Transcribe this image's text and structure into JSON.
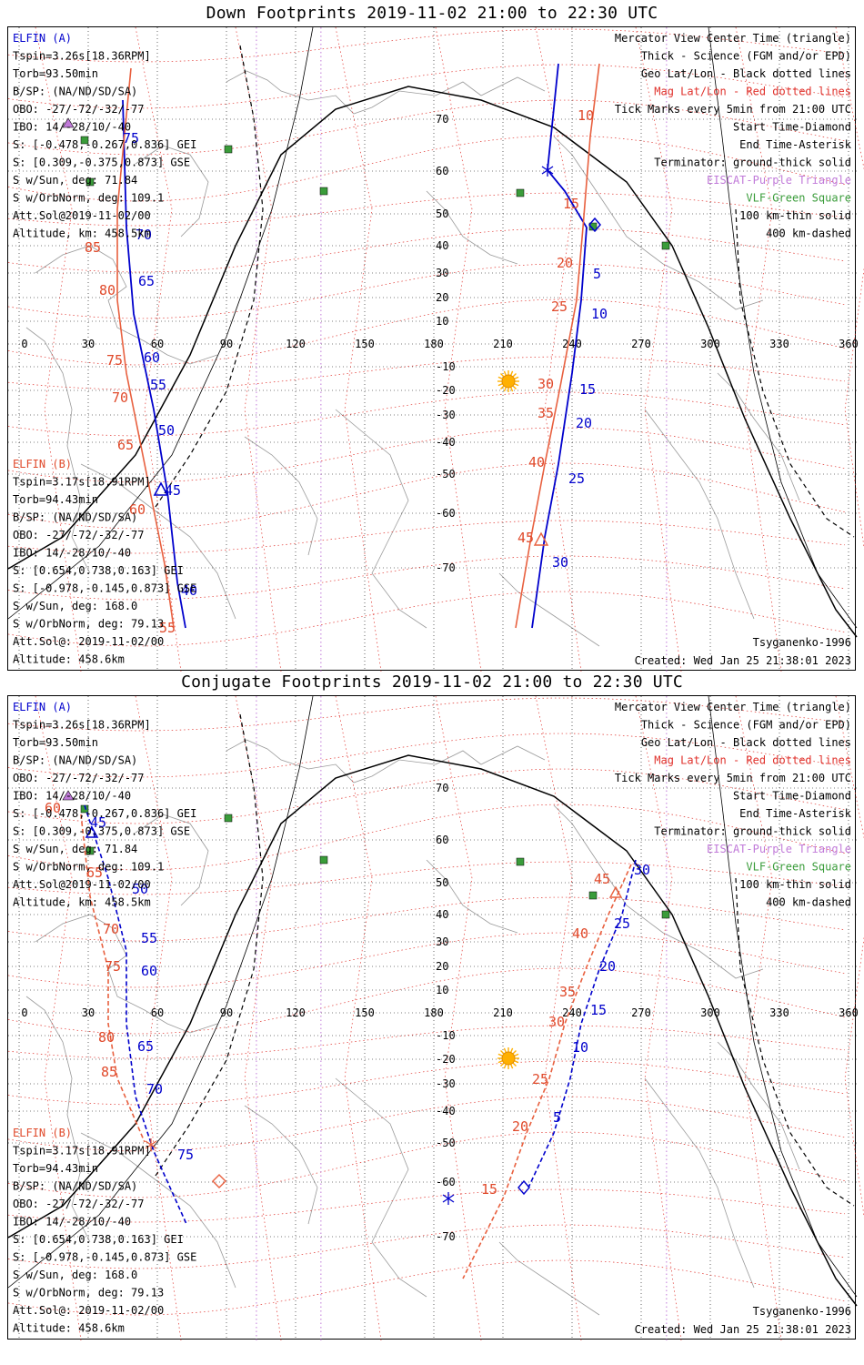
{
  "panels": [
    {
      "id": "down",
      "title": "Down Footprints 2019-11-02 21:00 to 22:30 UTC",
      "elfin_a": {
        "name": "ELFIN (A)",
        "lines": [
          "Tspin=3.26s[18.36RPM]",
          "Torb=93.50min",
          "B/SP: (NA/ND/SD/SA)",
          "OBO: -27/-72/-32/-77",
          "IBO: 14/-28/10/-40",
          "S: [-0.478,-0.267,0.836] GEI",
          "S: [0.309,-0.375,0.873] GSE",
          "S w/Sun, deg: 71.84",
          "S w/OrbNorm, deg: 109.1",
          "Att.Sol@2019-11-02/00",
          "Altitude, km: 458.5km"
        ]
      },
      "elfin_b": {
        "name": "ELFIN (B)",
        "lines": [
          "Tspin=3.17s[18.91RPM]",
          "Torb=94.43min",
          "B/SP: (NA/ND/SD/SA)",
          "OBO: -27/-72/-32/-77",
          "IBO: 14/-28/10/-40",
          "S: [0.654,0.738,0.163] GEI",
          "S: [-0.978,-0.145,0.873] GSE",
          "S w/Sun, deg: 168.0",
          "S w/OrbNorm, deg: 79.13",
          "Att.Sol@: 2019-11-02/00",
          "Altitude: 458.6km"
        ]
      },
      "legend": [
        {
          "text": "Mercator View Center Time (triangle)",
          "color": "#000000"
        },
        {
          "text": "Thick - Science (FGM and/or EPD)",
          "color": "#000000"
        },
        {
          "text": "Geo Lat/Lon - Black dotted lines",
          "color": "#000000"
        },
        {
          "text": "Mag Lat/Lon - Red dotted lines",
          "color": "#e0312b"
        },
        {
          "text": "Tick Marks every 5min from 21:00 UTC",
          "color": "#000000"
        },
        {
          "text": "Start Time-Diamond",
          "color": "#000000"
        },
        {
          "text": "End Time-Asterisk",
          "color": "#000000"
        },
        {
          "text": "Terminator: ground-thick solid",
          "color": "#000000"
        },
        {
          "text": "EISCAT-Purple Triangle",
          "color": "#c17ad9"
        },
        {
          "text": "VLF-Green Square",
          "color": "#3a9c3a"
        },
        {
          "text": "100 km-thin solid",
          "color": "#000000"
        },
        {
          "text": "400 km-dashed",
          "color": "#000000"
        }
      ],
      "model": "Tsyganenko-1996",
      "created": "Created: Wed Jan 25 21:38:01 2023",
      "lon_ticks": [
        "0",
        "30",
        "60",
        "90",
        "120",
        "150",
        "180",
        "210",
        "240",
        "270",
        "300",
        "330",
        "360"
      ],
      "lat_ticks": [
        "70",
        "60",
        "50",
        "40",
        "30",
        "20",
        "10",
        "-10",
        "-20",
        "-30",
        "-40",
        "-50",
        "-60",
        "-70"
      ],
      "track_a_labels": [
        "75",
        "70",
        "65",
        "60",
        "55",
        "50",
        "45",
        "40",
        "5",
        "10",
        "15",
        "20",
        "25",
        "30"
      ],
      "track_b_labels": [
        "85",
        "80",
        "75",
        "70",
        "65",
        "60",
        "55",
        "10",
        "15",
        "20",
        "25",
        "30",
        "35",
        "40",
        "45"
      ]
    },
    {
      "id": "conj",
      "title": "Conjugate Footprints 2019-11-02 21:00 to 22:30 UTC",
      "elfin_a": {
        "name": "ELFIN (A)",
        "lines": [
          "Tspin=3.26s[18.36RPM]",
          "Torb=93.50min",
          "B/SP: (NA/ND/SD/SA)",
          "OBO: -27/-72/-32/-77",
          "IBO: 14/-28/10/-40",
          "S: [-0.478,-0.267,0.836] GEI",
          "S: [0.309,-0.375,0.873] GSE",
          "S w/Sun, deg: 71.84",
          "S w/OrbNorm, deg: 109.1",
          "Att.Sol@2019-11-02/00",
          "Altitude, km: 458.5km"
        ]
      },
      "elfin_b": {
        "name": "ELFIN (B)",
        "lines": [
          "Tspin=3.17s[18.91RPM]",
          "Torb=94.43min",
          "B/SP: (NA/ND/SD/SA)",
          "OBO: -27/-72/-32/-77",
          "IBO: 14/-28/10/-40",
          "S: [0.654,0.738,0.163] GEI",
          "S: [-0.978,-0.145,0.873] GSE",
          "S w/Sun, deg: 168.0",
          "S w/OrbNorm, deg: 79.13",
          "Att.Sol@: 2019-11-02/00",
          "Altitude: 458.6km"
        ]
      },
      "legend": [
        {
          "text": "Mercator View Center Time (triangle)",
          "color": "#000000"
        },
        {
          "text": "Thick - Science (FGM and/or EPD)",
          "color": "#000000"
        },
        {
          "text": "Geo Lat/Lon - Black dotted lines",
          "color": "#000000"
        },
        {
          "text": "Mag Lat/Lon - Red dotted lines",
          "color": "#e0312b"
        },
        {
          "text": "Tick Marks every 5min from 21:00 UTC",
          "color": "#000000"
        },
        {
          "text": "Start Time-Diamond",
          "color": "#000000"
        },
        {
          "text": "End Time-Asterisk",
          "color": "#000000"
        },
        {
          "text": "Terminator: ground-thick solid",
          "color": "#000000"
        },
        {
          "text": "EISCAT-Purple Triangle",
          "color": "#c17ad9"
        },
        {
          "text": "VLF-Green Square",
          "color": "#3a9c3a"
        },
        {
          "text": "100 km-thin solid",
          "color": "#000000"
        },
        {
          "text": "400 km-dashed",
          "color": "#000000"
        }
      ],
      "model": "Tsyganenko-1996",
      "created": "Created: Wed Jan 25 21:38:01 2023",
      "lon_ticks": [
        "0",
        "30",
        "60",
        "90",
        "120",
        "150",
        "180",
        "210",
        "240",
        "270",
        "300",
        "330",
        "360"
      ],
      "lat_ticks": [
        "70",
        "60",
        "50",
        "40",
        "30",
        "20",
        "10",
        "-10",
        "-20",
        "-30",
        "-40",
        "-50",
        "-60",
        "-70"
      ],
      "track_a_labels": [
        "45",
        "50",
        "55",
        "60",
        "65",
        "70",
        "75",
        "5",
        "10",
        "15",
        "20",
        "25",
        "30"
      ],
      "track_b_labels": [
        "60",
        "65",
        "70",
        "75",
        "80",
        "85",
        "15",
        "20",
        "25",
        "30",
        "35",
        "40",
        "45"
      ]
    }
  ],
  "colors": {
    "track_a": "#0000cc",
    "track_b": "#e8603f",
    "mag_grid": "#e0312b",
    "geo_grid": "#000000",
    "eiscat": "#c17ad9",
    "vlf": "#3a9c3a",
    "sun": "#ffb000",
    "coast": "#9a9a9a"
  }
}
